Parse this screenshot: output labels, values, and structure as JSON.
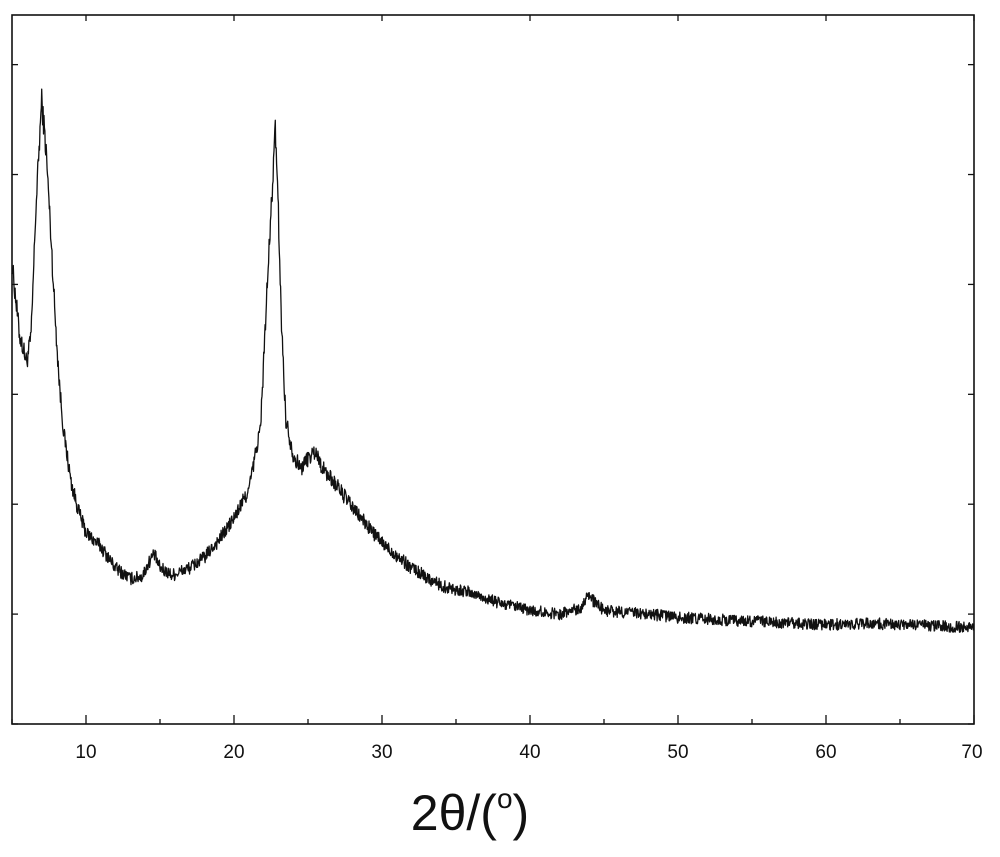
{
  "chart_data": {
    "type": "line",
    "title": "",
    "xlabel": "2θ/(°)",
    "xlabel_parts": {
      "main": "2θ/(",
      "sup": "o",
      "close": ")"
    },
    "ylabel": "",
    "xlim": [
      5,
      70
    ],
    "ylim": [
      0,
      100
    ],
    "xticks": [
      10,
      20,
      30,
      40,
      50,
      60,
      70
    ],
    "xtick_labels": [
      "10",
      "20",
      "30",
      "40",
      "50",
      "60",
      "70"
    ],
    "y_tick_labels_shown": false,
    "grid": false,
    "legend": "none",
    "line_color": "#111111",
    "series": [
      {
        "x": [
          5.0,
          5.5,
          6.0,
          6.3,
          6.6,
          7.0,
          7.3,
          7.6,
          7.9,
          8.2,
          8.5,
          9.0,
          9.5,
          10.0,
          11.0,
          12.0,
          13.0,
          13.8,
          14.3,
          14.6,
          15.0,
          15.8,
          17.0,
          18.0,
          19.0,
          20.0,
          21.0,
          21.8,
          22.2,
          22.5,
          22.8,
          23.0,
          23.2,
          23.5,
          24.0,
          24.5,
          25.0,
          25.5,
          26.0,
          27.0,
          28.0,
          29.0,
          30.0,
          32.0,
          34.0,
          36.0,
          38.0,
          40.0,
          42.0,
          43.5,
          43.9,
          44.4,
          45.0,
          48.0,
          50.0,
          55.0,
          58.0,
          60.0,
          63.0,
          65.0,
          68.0,
          70.0
        ],
        "y": [
          65,
          55,
          51,
          55,
          72,
          88,
          81,
          70,
          58,
          48,
          41,
          34,
          30,
          27,
          25,
          22,
          20.5,
          20.8,
          23,
          24,
          22,
          21,
          22,
          23.5,
          26,
          29,
          33,
          42,
          60,
          72,
          84,
          72,
          57,
          43,
          38,
          36,
          37.5,
          38.5,
          36,
          33.5,
          30.5,
          28,
          25.5,
          22,
          19.5,
          18.5,
          17,
          16,
          15.5,
          16.5,
          18.5,
          17,
          16,
          15.5,
          15,
          14.5,
          14.2,
          14,
          14.2,
          14,
          13.8,
          13.5
        ]
      }
    ]
  }
}
